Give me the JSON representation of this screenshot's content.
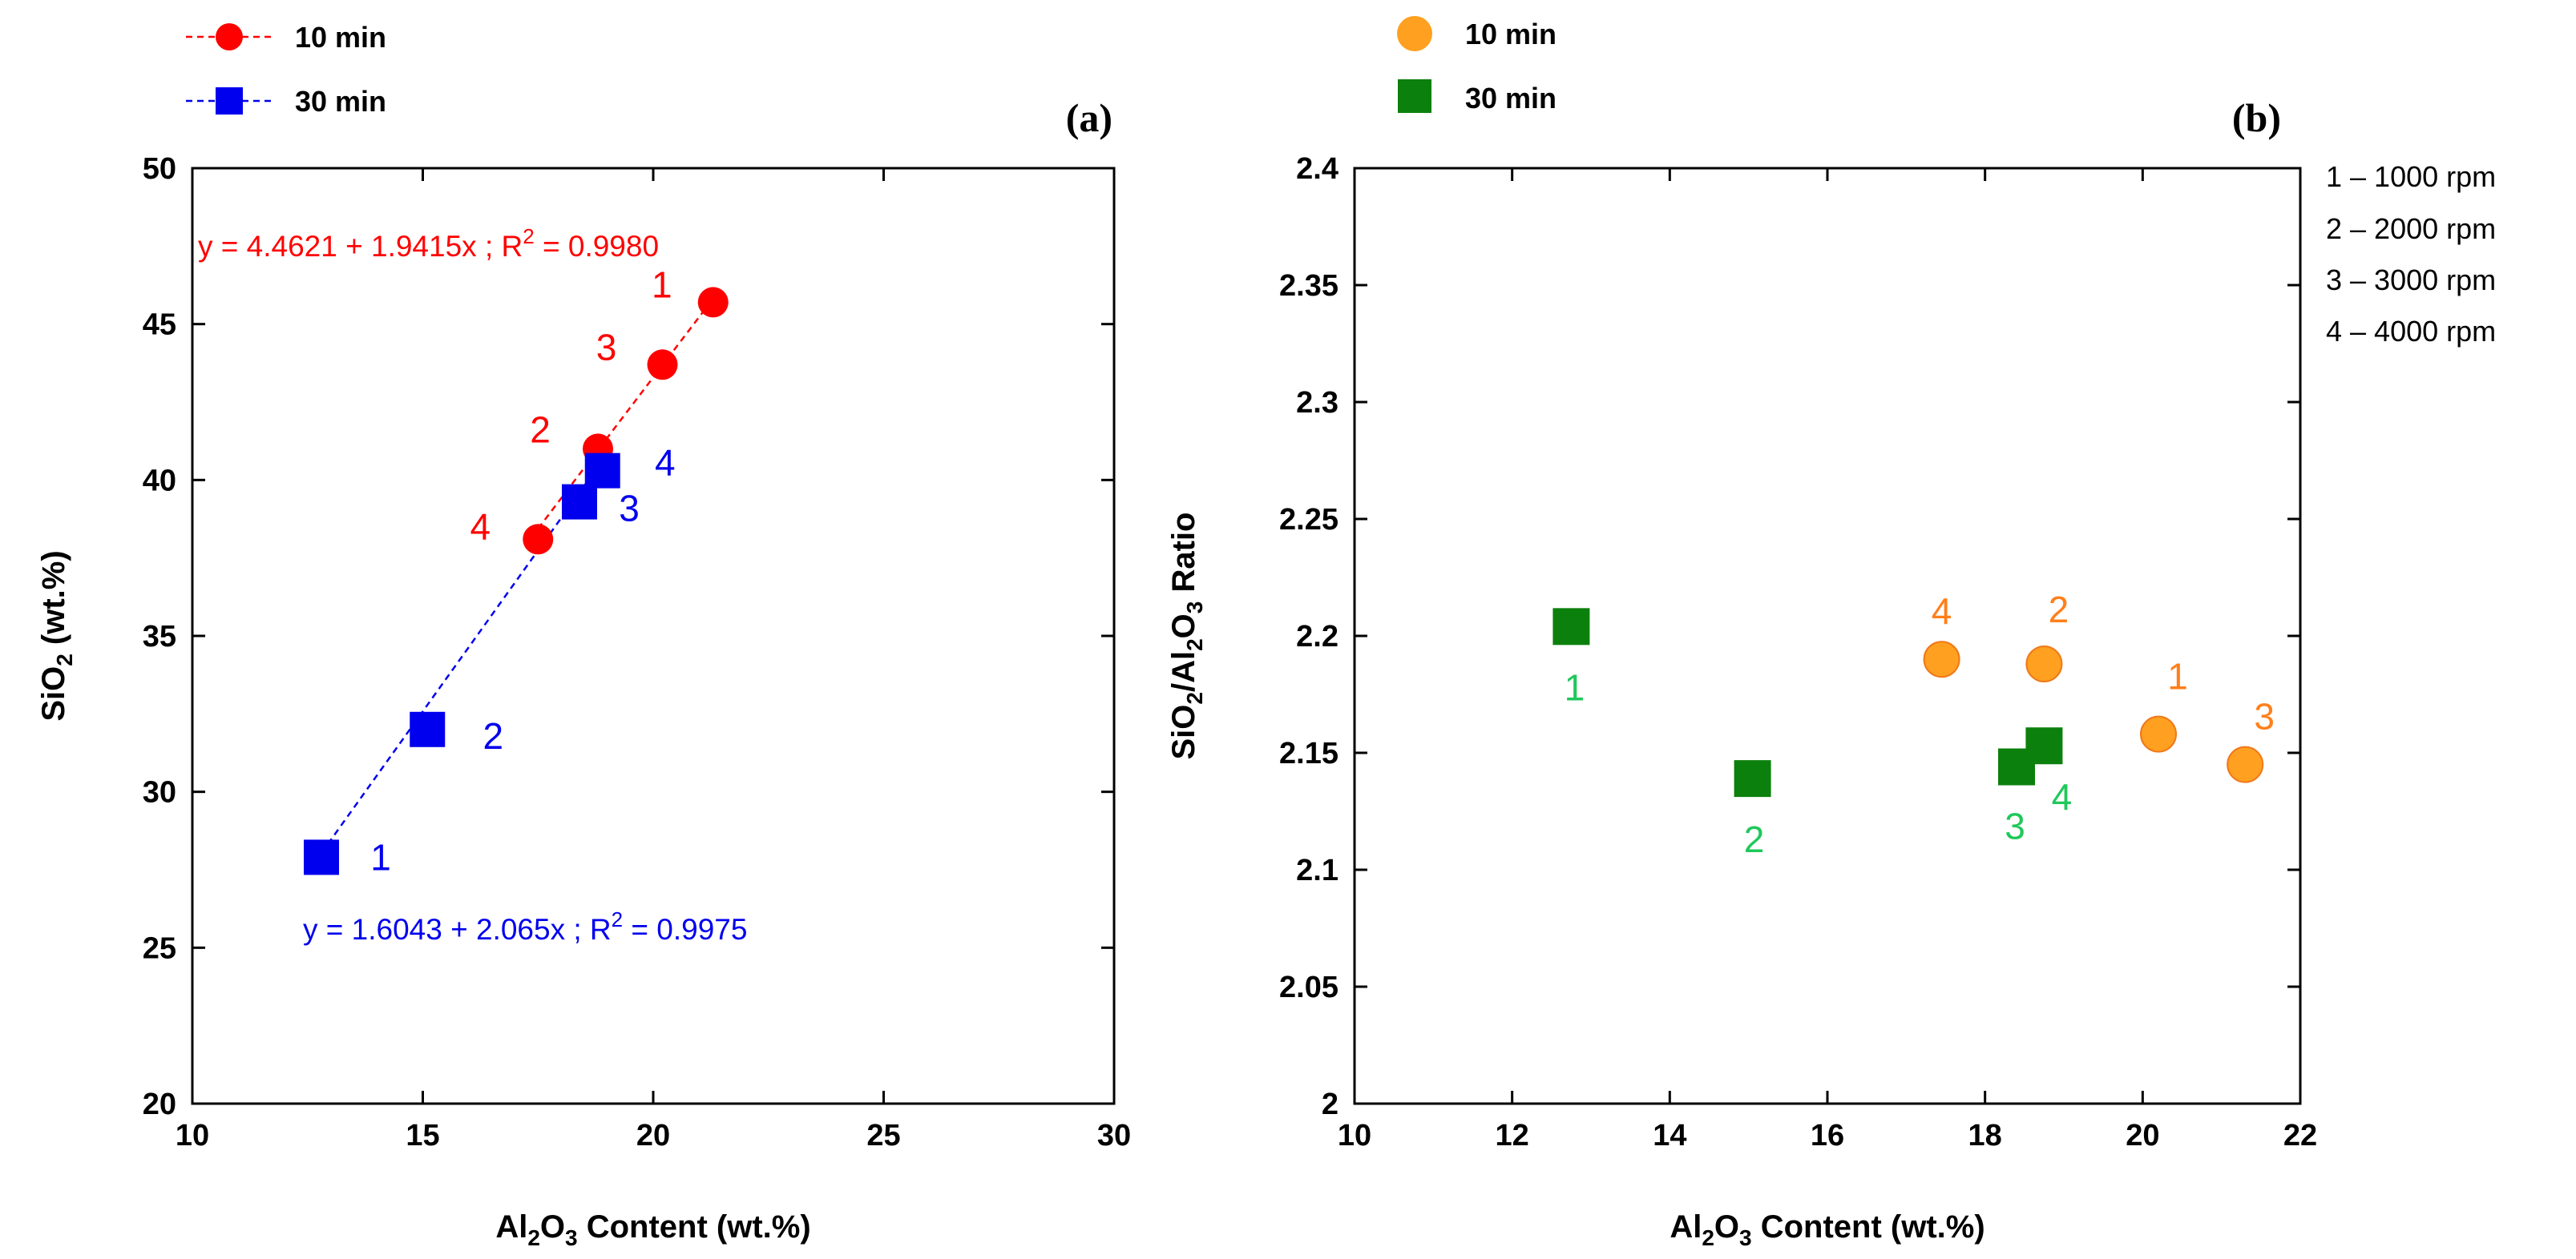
{
  "chart_data": [
    {
      "type": "scatter",
      "panel_label": "(a)",
      "xlabel": "Al2O3 Content (wt.%)",
      "ylabel": "SiO2 (wt.%)",
      "xlim": [
        10,
        30
      ],
      "ylim": [
        20,
        50
      ],
      "xticks": [
        10,
        15,
        20,
        25,
        30
      ],
      "yticks": [
        20,
        25,
        30,
        35,
        40,
        45,
        50
      ],
      "legend_position": "top-left",
      "series": [
        {
          "name": "10 min",
          "color": "#ff0000",
          "marker": "circle",
          "line": "dashed",
          "points": [
            {
              "label": "1",
              "x": 21.3,
              "y": 45.7
            },
            {
              "label": "3",
              "x": 20.2,
              "y": 43.7
            },
            {
              "label": "2",
              "x": 18.8,
              "y": 41.0
            },
            {
              "label": "4",
              "x": 17.5,
              "y": 38.1
            }
          ],
          "fit": {
            "intercept": 4.4621,
            "slope": 1.9415,
            "x_range": [
              17.5,
              21.3
            ]
          },
          "equation_main": "y = 4.4621 + 1.9415x ; R",
          "equation_sup": "2",
          "equation_tail": " = 0.9980"
        },
        {
          "name": "30 min",
          "color": "#0000ee",
          "marker": "square",
          "line": "dashed",
          "points": [
            {
              "label": "1",
              "x": 12.8,
              "y": 27.9
            },
            {
              "label": "2",
              "x": 15.1,
              "y": 32.0
            },
            {
              "label": "3",
              "x": 18.4,
              "y": 39.3
            },
            {
              "label": "4",
              "x": 18.9,
              "y": 40.3
            }
          ],
          "fit": {
            "intercept": 1.6043,
            "slope": 2.065,
            "x_range": [
              12.8,
              18.9
            ]
          },
          "equation_main": "y = 1.6043 + 2.065x ; R",
          "equation_sup": "2",
          "equation_tail": " = 0.9975"
        }
      ]
    },
    {
      "type": "scatter",
      "panel_label": "(b)",
      "xlabel": "Al2O3 Content (wt.%)",
      "ylabel": "SiO2/Al2O3 Ratio",
      "xlim": [
        10,
        22
      ],
      "ylim": [
        2,
        2.4
      ],
      "xticks": [
        10,
        12,
        14,
        16,
        18,
        20,
        22
      ],
      "yticks": [
        "2",
        "2.05",
        "2.1",
        "2.15",
        "2.2",
        "2.25",
        "2.3",
        "2.35",
        "2.4"
      ],
      "legend_position": "top-left",
      "rpm_legend": [
        "1 – 1000 rpm",
        "2 – 2000 rpm",
        "3 – 3000 rpm",
        "4 – 4000 rpm"
      ],
      "series": [
        {
          "name": "10 min",
          "color": "#ffa020",
          "label_color": "#ff7f1a",
          "marker": "circle",
          "points": [
            {
              "label": "4",
              "x": 17.45,
              "y": 2.19
            },
            {
              "label": "2",
              "x": 18.75,
              "y": 2.188
            },
            {
              "label": "1",
              "x": 20.2,
              "y": 2.158
            },
            {
              "label": "3",
              "x": 21.3,
              "y": 2.145
            }
          ]
        },
        {
          "name": "30 min",
          "color": "#0c800c",
          "label_color": "#1fc85a",
          "marker": "square",
          "points": [
            {
              "label": "1",
              "x": 12.75,
              "y": 2.204
            },
            {
              "label": "2",
              "x": 15.05,
              "y": 2.139
            },
            {
              "label": "3",
              "x": 18.4,
              "y": 2.144
            },
            {
              "label": "4",
              "x": 18.75,
              "y": 2.153
            }
          ]
        }
      ]
    }
  ]
}
